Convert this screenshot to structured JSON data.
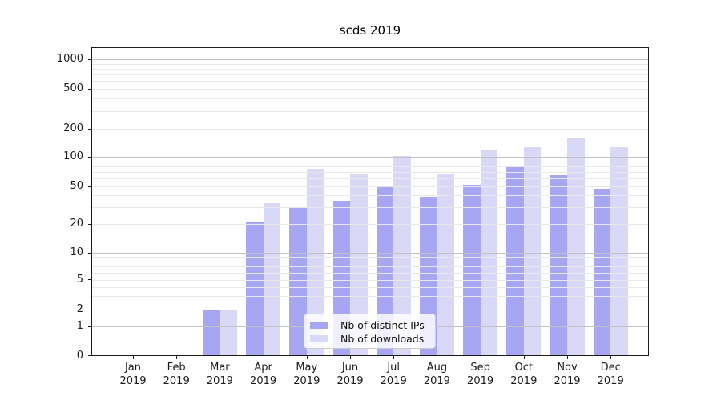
{
  "chart_data": {
    "type": "bar",
    "title": "scds 2019",
    "categories": [
      "Jan",
      "Feb",
      "Mar",
      "Apr",
      "May",
      "Jun",
      "Jul",
      "Aug",
      "Sep",
      "Oct",
      "Nov",
      "Dec"
    ],
    "year_label": "2019",
    "series": [
      {
        "name": "Nb of distinct IPs",
        "color": "#a6a6f2",
        "values": [
          0,
          0,
          2,
          21,
          30,
          35,
          50,
          39,
          52,
          78,
          65,
          47
        ]
      },
      {
        "name": "Nb of downloads",
        "color": "#d9d9f7",
        "values": [
          0,
          0,
          2,
          33,
          75,
          68,
          102,
          66,
          118,
          127,
          158,
          127
        ]
      }
    ],
    "y_axis": {
      "scale": "symlog",
      "ticks": [
        0,
        1,
        2,
        5,
        10,
        20,
        50,
        100,
        200,
        500,
        1000
      ],
      "tick_labels": [
        "0",
        "1",
        "2",
        "5",
        "10",
        "20",
        "50",
        "100",
        "200",
        "500",
        "1000"
      ],
      "major_ticks": [
        1,
        10,
        100,
        1000
      ],
      "minor_gridlines": [
        3,
        4,
        6,
        7,
        8,
        9,
        30,
        40,
        60,
        70,
        80,
        90,
        300,
        400,
        600,
        700,
        800,
        900
      ],
      "ylim": [
        0,
        1300
      ]
    },
    "x_axis": {
      "tick_labels": [
        "Jan 2019",
        "Feb 2019",
        "Mar 2019",
        "Apr 2019",
        "May 2019",
        "Jun 2019",
        "Jul 2019",
        "Aug 2019",
        "Sep 2019",
        "Oct 2019",
        "Nov 2019",
        "Dec 2019"
      ]
    },
    "legend": {
      "entries": [
        "Nb of distinct IPs",
        "Nb of downloads"
      ],
      "location": "lower center"
    },
    "grid": true,
    "background": "#ffffff",
    "text_color": "#1a1a1a"
  }
}
